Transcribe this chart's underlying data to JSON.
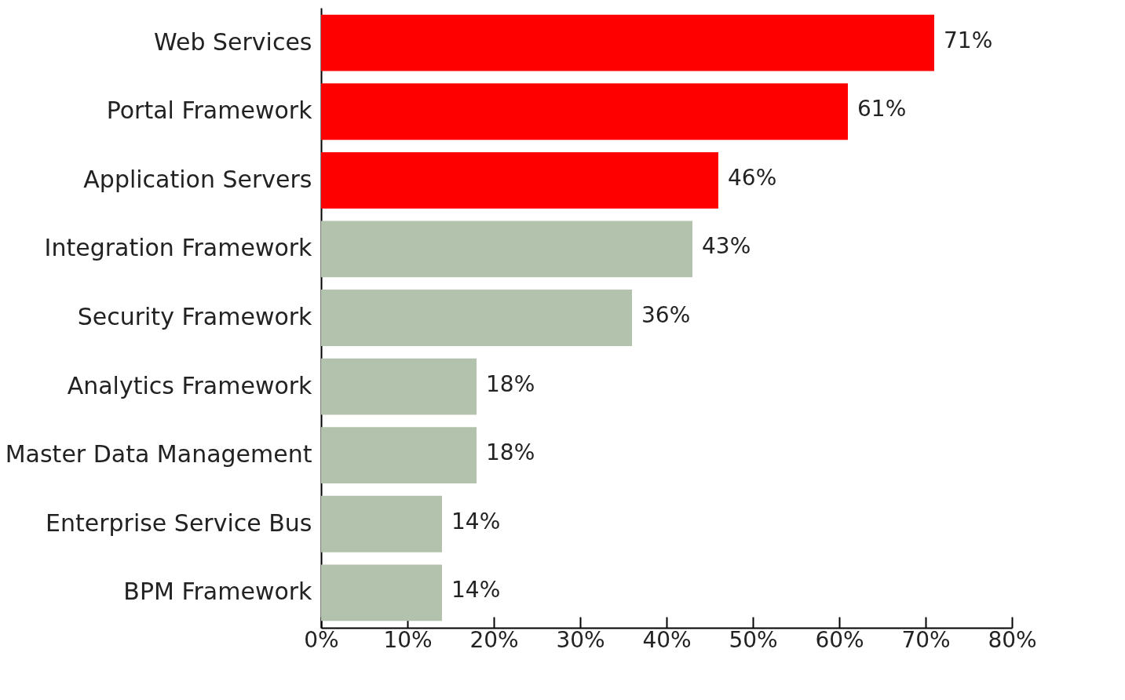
{
  "chart_data": {
    "type": "bar",
    "orientation": "horizontal",
    "categories": [
      "Web Services",
      "Portal Framework",
      "Application Servers",
      "Integration Framework",
      "Security Framework",
      "Analytics Framework",
      "Master Data Management",
      "Enterprise Service Bus",
      "BPM Framework"
    ],
    "values": [
      71,
      61,
      46,
      43,
      36,
      18,
      18,
      14,
      14
    ],
    "colors": [
      "#ff0000",
      "#ff0000",
      "#ff0000",
      "#b2c2ac",
      "#b2c2ac",
      "#b2c2ac",
      "#b2c2ac",
      "#b2c2ac",
      "#b2c2ac"
    ],
    "value_labels": [
      "71%",
      "61%",
      "46%",
      "43%",
      "36%",
      "18%",
      "18%",
      "14%",
      "14%"
    ],
    "xlim": [
      0,
      80
    ],
    "xticks": [
      {
        "value": 0,
        "label": "0%"
      },
      {
        "value": 10,
        "label": "10%"
      },
      {
        "value": 20,
        "label": "20%"
      },
      {
        "value": 30,
        "label": "30%"
      },
      {
        "value": 40,
        "label": "40%"
      },
      {
        "value": 50,
        "label": "50%"
      },
      {
        "value": 60,
        "label": "60%"
      },
      {
        "value": 70,
        "label": "70%"
      },
      {
        "value": 80,
        "label": "80%"
      }
    ],
    "grid": false
  }
}
